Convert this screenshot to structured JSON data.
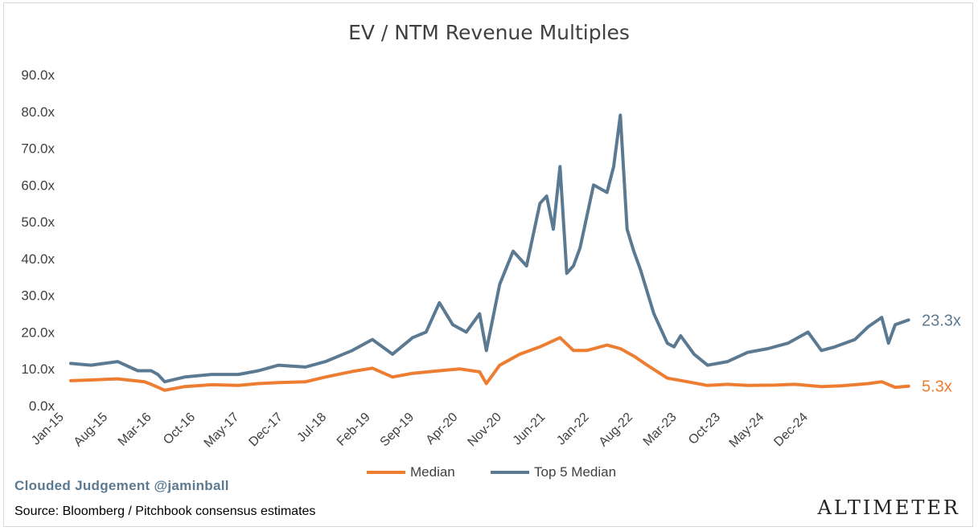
{
  "chart_data": {
    "type": "line",
    "title": "EV / NTM Revenue Multiples",
    "y_ticks": [
      "0.0x",
      "10.0x",
      "20.0x",
      "30.0x",
      "40.0x",
      "50.0x",
      "60.0x",
      "70.0x",
      "80.0x",
      "90.0x"
    ],
    "ylim": [
      0,
      90
    ],
    "x_ticks": [
      "Jan-15",
      "Aug-15",
      "Mar-16",
      "Oct-16",
      "May-17",
      "Dec-17",
      "Jul-18",
      "Feb-19",
      "Sep-19",
      "Apr-20",
      "Nov-20",
      "Jun-21",
      "Jan-22",
      "Aug-22",
      "Mar-23",
      "Oct-23",
      "May-24",
      "Dec-24"
    ],
    "grid": false,
    "legend_position": "bottom",
    "series": [
      {
        "name": "Median",
        "color": "#ed7d31",
        "end_label": "5.3x",
        "x": [
          "2015-01",
          "2015-04",
          "2015-08",
          "2015-12",
          "2016-01",
          "2016-02",
          "2016-03",
          "2016-06",
          "2016-10",
          "2017-02",
          "2017-05",
          "2017-08",
          "2017-12",
          "2018-03",
          "2018-07",
          "2018-10",
          "2019-01",
          "2019-04",
          "2019-08",
          "2019-11",
          "2020-02",
          "2020-03",
          "2020-05",
          "2020-08",
          "2020-11",
          "2021-02",
          "2021-04",
          "2021-06",
          "2021-09",
          "2021-11",
          "2022-01",
          "2022-03",
          "2022-06",
          "2022-09",
          "2022-12",
          "2023-03",
          "2023-06",
          "2023-10",
          "2024-01",
          "2024-05",
          "2024-08",
          "2024-12",
          "2025-02",
          "2025-04",
          "2025-06"
        ],
        "y": [
          6.8,
          7.0,
          7.3,
          6.5,
          5.8,
          5.0,
          4.2,
          5.2,
          5.7,
          5.5,
          6.0,
          6.3,
          6.5,
          7.8,
          9.3,
          10.2,
          7.8,
          8.8,
          9.5,
          10.0,
          9.2,
          6.0,
          11.0,
          14.0,
          16.0,
          18.5,
          15.0,
          15.0,
          16.5,
          15.5,
          13.5,
          11.0,
          7.5,
          6.5,
          5.5,
          5.8,
          5.5,
          5.6,
          5.8,
          5.2,
          5.4,
          6.0,
          6.5,
          5.0,
          5.3
        ]
      },
      {
        "name": "Top 5 Median",
        "color": "#5b7a92",
        "end_label": "23.3x",
        "x": [
          "2015-01",
          "2015-04",
          "2015-08",
          "2015-11",
          "2016-01",
          "2016-02",
          "2016-03",
          "2016-06",
          "2016-10",
          "2017-02",
          "2017-05",
          "2017-08",
          "2017-12",
          "2018-03",
          "2018-05",
          "2018-07",
          "2018-10",
          "2019-01",
          "2019-04",
          "2019-06",
          "2019-08",
          "2019-10",
          "2019-12",
          "2020-02",
          "2020-03",
          "2020-05",
          "2020-07",
          "2020-09",
          "2020-11",
          "2020-12",
          "2021-01",
          "2021-02",
          "2021-03",
          "2021-04",
          "2021-05",
          "2021-07",
          "2021-09",
          "2021-10",
          "2021-11",
          "2021-12",
          "2022-01",
          "2022-02",
          "2022-04",
          "2022-06",
          "2022-07",
          "2022-08",
          "2022-10",
          "2022-12",
          "2023-03",
          "2023-06",
          "2023-09",
          "2023-12",
          "2024-03",
          "2024-05",
          "2024-07",
          "2024-10",
          "2024-12",
          "2025-02",
          "2025-03",
          "2025-04",
          "2025-06"
        ],
        "y": [
          11.5,
          11.0,
          12.0,
          9.5,
          9.5,
          8.5,
          6.5,
          7.8,
          8.5,
          8.5,
          9.5,
          11.0,
          10.5,
          12.0,
          13.5,
          15.0,
          18.0,
          14.0,
          18.5,
          20.0,
          28.0,
          22.0,
          20.0,
          25.0,
          15.0,
          33.0,
          42.0,
          38.0,
          55.0,
          57.0,
          48.0,
          65.0,
          36.0,
          38.0,
          43.0,
          60.0,
          58.0,
          65.0,
          79.0,
          48.0,
          42.0,
          37.0,
          25.0,
          17.0,
          16.0,
          19.0,
          14.0,
          11.0,
          12.0,
          14.5,
          15.5,
          17.0,
          20.0,
          15.0,
          16.0,
          18.0,
          21.5,
          24.0,
          17.0,
          22.0,
          23.3
        ]
      }
    ]
  },
  "credit": "Clouded Judgement @jaminball",
  "source": "Source: Bloomberg / Pitchbook consensus estimates",
  "logo": "ALTIMETER"
}
